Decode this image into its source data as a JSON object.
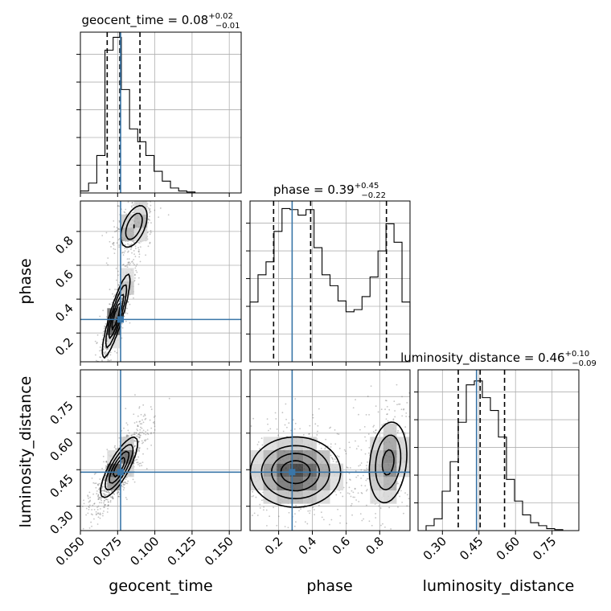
{
  "chart_data": {
    "type": "corner",
    "parameters": [
      "geocent_time",
      "phase",
      "luminosity_distance"
    ],
    "truth_color": "#3a76a8",
    "truths": {
      "geocent_time": 0.077,
      "phase": 0.28,
      "luminosity_distance": 0.44
    },
    "ranges": {
      "geocent_time": [
        0.05,
        0.158
      ],
      "phase": [
        0.03,
        0.98
      ],
      "luminosity_distance": [
        0.2,
        0.86
      ]
    },
    "titles": {
      "geocent_time": {
        "name": "geocent_time",
        "median": "0.08",
        "plus": "+0.02",
        "minus": "−0.01"
      },
      "phase": {
        "name": "phase",
        "median": "0.39",
        "plus": "+0.45",
        "minus": "−0.22"
      },
      "luminosity_distance": {
        "name": "luminosity_distance",
        "median": "0.46",
        "plus": "+0.10",
        "minus": "−0.09"
      }
    },
    "quantiles": {
      "geocent_time": [
        0.068,
        0.0765,
        0.09
      ],
      "phase": [
        0.17,
        0.39,
        0.84
      ],
      "luminosity_distance": [
        0.365,
        0.455,
        0.555
      ]
    },
    "ticks": {
      "geocent_time": [
        "0.050",
        "0.075",
        "0.100",
        "0.125",
        "0.150"
      ],
      "phase": [
        "0.2",
        "0.4",
        "0.6",
        "0.8"
      ],
      "luminosity_distance": [
        "0.30",
        "0.45",
        "0.60",
        "0.75"
      ]
    },
    "histograms": {
      "geocent_time": {
        "bin_edges": [
          0.05,
          0.0555,
          0.061,
          0.0665,
          0.072,
          0.0775,
          0.083,
          0.0885,
          0.094,
          0.0995,
          0.105,
          0.1105,
          0.116,
          0.1215,
          0.127,
          0.1325,
          0.138,
          0.1435,
          0.149,
          0.1545,
          0.158
        ],
        "counts": [
          2,
          10,
          38,
          145,
          158,
          105,
          65,
          52,
          38,
          22,
          12,
          5,
          2,
          1,
          0,
          0,
          0,
          0,
          0,
          0
        ],
        "max": 160
      },
      "phase": {
        "bin_edges": [
          0.03,
          0.0775,
          0.125,
          0.1725,
          0.22,
          0.2675,
          0.315,
          0.3625,
          0.41,
          0.4575,
          0.505,
          0.5525,
          0.6,
          0.6475,
          0.695,
          0.7425,
          0.79,
          0.8375,
          0.885,
          0.9325,
          0.98
        ],
        "counts": [
          55,
          80,
          92,
          120,
          141,
          140,
          135,
          140,
          105,
          80,
          70,
          56,
          46,
          48,
          60,
          78,
          102,
          127,
          110,
          55
        ],
        "max": 145
      },
      "luminosity_distance": {
        "bin_edges": [
          0.2,
          0.233,
          0.266,
          0.299,
          0.332,
          0.365,
          0.398,
          0.431,
          0.464,
          0.497,
          0.53,
          0.563,
          0.596,
          0.629,
          0.662,
          0.695,
          0.728,
          0.761,
          0.794,
          0.827,
          0.86
        ],
        "counts": [
          0,
          5,
          12,
          40,
          70,
          110,
          148,
          152,
          135,
          122,
          95,
          52,
          30,
          16,
          8,
          5,
          2,
          1,
          0,
          0
        ],
        "max": 160
      }
    },
    "pairs": [
      {
        "x": "geocent_time",
        "y": "phase",
        "peaks": [
          {
            "x": 0.074,
            "y": 0.3,
            "sx": 0.0045,
            "sy": 0.12,
            "rho": 0.88,
            "w": 1.0
          },
          {
            "x": 0.086,
            "y": 0.83,
            "sx": 0.005,
            "sy": 0.07,
            "rho": 0.5,
            "w": 0.55
          }
        ]
      },
      {
        "x": "geocent_time",
        "y": "luminosity_distance",
        "peaks": [
          {
            "x": 0.076,
            "y": 0.46,
            "sx": 0.006,
            "sy": 0.06,
            "rho": 0.8,
            "w": 1.0
          }
        ]
      },
      {
        "x": "phase",
        "y": "luminosity_distance",
        "peaks": [
          {
            "x": 0.3,
            "y": 0.44,
            "sx": 0.13,
            "sy": 0.07,
            "rho": 0.0,
            "w": 1.0
          },
          {
            "x": 0.85,
            "y": 0.48,
            "sx": 0.06,
            "sy": 0.09,
            "rho": 0.2,
            "w": 0.65
          }
        ]
      }
    ]
  }
}
